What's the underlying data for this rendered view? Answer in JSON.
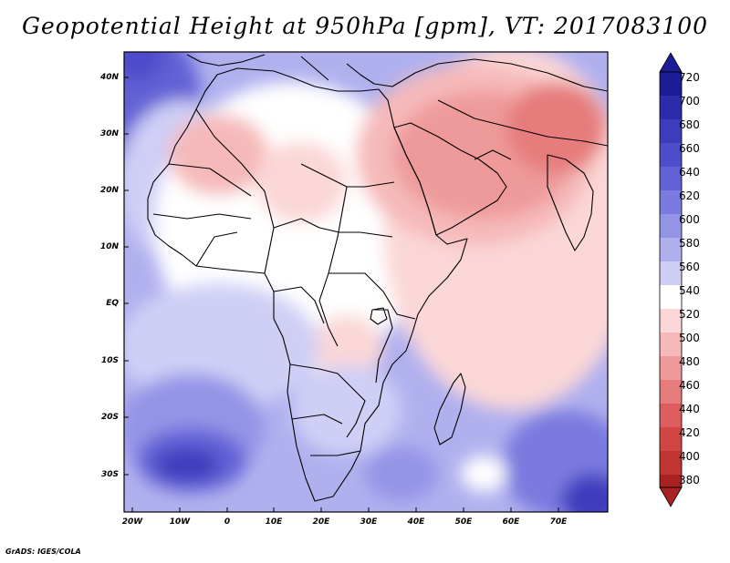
{
  "title": "Geopotential Height at 950hPa [gpm], VT: 2017083100",
  "credit": "GrADS: IGES/COLA",
  "map": {
    "variable": "Geopotential Height",
    "level": "950hPa",
    "units": "gpm",
    "valid_time": "2017083100",
    "lat_labels": [
      "40N",
      "30N",
      "20N",
      "10N",
      "EQ",
      "10S",
      "20S",
      "30S"
    ],
    "lon_labels": [
      "20W",
      "10W",
      "0",
      "10E",
      "20E",
      "30E",
      "40E",
      "50E",
      "60E",
      "70E"
    ]
  },
  "colorbar": {
    "levels": [
      "720",
      "700",
      "680",
      "660",
      "640",
      "620",
      "600",
      "580",
      "560",
      "540",
      "520",
      "500",
      "480",
      "460",
      "440",
      "420",
      "400",
      "380"
    ],
    "colors": [
      "#1c1c96",
      "#2b2bab",
      "#3c3cbd",
      "#4e4ecb",
      "#6262d6",
      "#7a7adf",
      "#9494e7",
      "#b0b0ef",
      "#cfcff6",
      "#ffffff",
      "#fbd7d7",
      "#f6b9b9",
      "#ee9a9a",
      "#e67c7c",
      "#dc5e5e",
      "#d24545",
      "#c23434",
      "#a82222"
    ]
  },
  "colors": {
    "deep_blue": "#3c3cbd",
    "mid_blue": "#7a7adf",
    "light_blue": "#cfcff6",
    "white": "#ffffff",
    "light_red": "#fbd7d7",
    "mid_red": "#ee9a9a",
    "deep_red": "#dc5e5e",
    "coast": "#000000"
  }
}
